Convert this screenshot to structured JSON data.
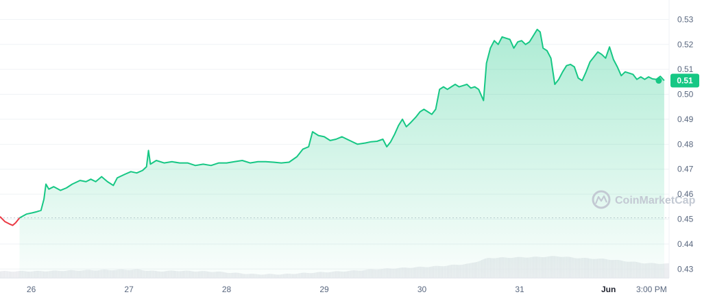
{
  "chart_data": {
    "type": "line",
    "title": "",
    "xlabel": "",
    "ylabel": "",
    "x_ticks": [
      "26",
      "27",
      "28",
      "29",
      "30",
      "31",
      "Jun",
      "3:00 PM"
    ],
    "y_ticks": [
      "0.53",
      "0.52",
      "0.51",
      "0.50",
      "0.49",
      "0.48",
      "0.47",
      "0.46",
      "0.45",
      "0.44",
      "0.43"
    ],
    "ylim": [
      0.4265,
      0.5356
    ],
    "xlim": [
      0,
      6.85
    ],
    "reference_price": 0.4505,
    "current_price_label": "0.51",
    "current_price": 0.5055,
    "grid": true,
    "colors": {
      "up": "#16c784",
      "down": "#ea3943",
      "volume": "#e6e8ec",
      "grid": "#eff2f5",
      "axis_text": "#58667e"
    },
    "watermark": "CoinMarketCap",
    "series": [
      {
        "values": [
          [
            0.0,
            0.451
          ],
          [
            0.05,
            0.449
          ],
          [
            0.1,
            0.448
          ],
          [
            0.13,
            0.4475
          ],
          [
            0.16,
            0.4485
          ],
          [
            0.2,
            0.4505
          ],
          [
            0.27,
            0.452
          ],
          [
            0.33,
            0.4525
          ],
          [
            0.38,
            0.453
          ],
          [
            0.42,
            0.4535
          ],
          [
            0.45,
            0.458
          ],
          [
            0.47,
            0.464
          ],
          [
            0.5,
            0.462
          ],
          [
            0.55,
            0.463
          ],
          [
            0.62,
            0.4615
          ],
          [
            0.68,
            0.4625
          ],
          [
            0.74,
            0.464
          ],
          [
            0.82,
            0.4655
          ],
          [
            0.88,
            0.465
          ],
          [
            0.93,
            0.466
          ],
          [
            0.98,
            0.465
          ],
          [
            1.04,
            0.467
          ],
          [
            1.1,
            0.465
          ],
          [
            1.16,
            0.4635
          ],
          [
            1.2,
            0.4665
          ],
          [
            1.28,
            0.468
          ],
          [
            1.34,
            0.469
          ],
          [
            1.4,
            0.4685
          ],
          [
            1.46,
            0.4695
          ],
          [
            1.5,
            0.471
          ],
          [
            1.52,
            0.4775
          ],
          [
            1.54,
            0.472
          ],
          [
            1.6,
            0.4735
          ],
          [
            1.68,
            0.4725
          ],
          [
            1.76,
            0.473
          ],
          [
            1.84,
            0.4725
          ],
          [
            1.92,
            0.4725
          ],
          [
            2.0,
            0.4715
          ],
          [
            2.08,
            0.472
          ],
          [
            2.16,
            0.4715
          ],
          [
            2.24,
            0.4725
          ],
          [
            2.32,
            0.4725
          ],
          [
            2.4,
            0.473
          ],
          [
            2.48,
            0.4735
          ],
          [
            2.56,
            0.4725
          ],
          [
            2.64,
            0.473
          ],
          [
            2.72,
            0.473
          ],
          [
            2.8,
            0.4728
          ],
          [
            2.88,
            0.4725
          ],
          [
            2.96,
            0.4728
          ],
          [
            3.04,
            0.475
          ],
          [
            3.1,
            0.478
          ],
          [
            3.16,
            0.479
          ],
          [
            3.2,
            0.485
          ],
          [
            3.26,
            0.4835
          ],
          [
            3.32,
            0.483
          ],
          [
            3.38,
            0.4815
          ],
          [
            3.44,
            0.482
          ],
          [
            3.5,
            0.483
          ],
          [
            3.58,
            0.4815
          ],
          [
            3.66,
            0.48
          ],
          [
            3.74,
            0.4805
          ],
          [
            3.8,
            0.481
          ],
          [
            3.86,
            0.4812
          ],
          [
            3.92,
            0.482
          ],
          [
            3.96,
            0.479
          ],
          [
            4.0,
            0.481
          ],
          [
            4.04,
            0.484
          ],
          [
            4.08,
            0.4875
          ],
          [
            4.12,
            0.49
          ],
          [
            4.16,
            0.487
          ],
          [
            4.2,
            0.4885
          ],
          [
            4.26,
            0.491
          ],
          [
            4.3,
            0.493
          ],
          [
            4.34,
            0.494
          ],
          [
            4.38,
            0.493
          ],
          [
            4.42,
            0.492
          ],
          [
            4.46,
            0.494
          ],
          [
            4.5,
            0.502
          ],
          [
            4.54,
            0.503
          ],
          [
            4.58,
            0.502
          ],
          [
            4.62,
            0.503
          ],
          [
            4.66,
            0.504
          ],
          [
            4.7,
            0.503
          ],
          [
            4.74,
            0.5035
          ],
          [
            4.78,
            0.504
          ],
          [
            4.82,
            0.5025
          ],
          [
            4.86,
            0.503
          ],
          [
            4.9,
            0.502
          ],
          [
            4.95,
            0.4975
          ],
          [
            4.98,
            0.5125
          ],
          [
            5.02,
            0.5185
          ],
          [
            5.06,
            0.5215
          ],
          [
            5.1,
            0.52
          ],
          [
            5.14,
            0.523
          ],
          [
            5.18,
            0.5225
          ],
          [
            5.22,
            0.522
          ],
          [
            5.26,
            0.5185
          ],
          [
            5.3,
            0.521
          ],
          [
            5.34,
            0.5215
          ],
          [
            5.38,
            0.52
          ],
          [
            5.42,
            0.521
          ],
          [
            5.46,
            0.5235
          ],
          [
            5.5,
            0.526
          ],
          [
            5.53,
            0.525
          ],
          [
            5.56,
            0.5185
          ],
          [
            5.6,
            0.5175
          ],
          [
            5.64,
            0.5145
          ],
          [
            5.68,
            0.504
          ],
          [
            5.72,
            0.506
          ],
          [
            5.76,
            0.509
          ],
          [
            5.8,
            0.5115
          ],
          [
            5.84,
            0.512
          ],
          [
            5.88,
            0.511
          ],
          [
            5.92,
            0.5065
          ],
          [
            5.96,
            0.5055
          ],
          [
            6.0,
            0.509
          ],
          [
            6.04,
            0.513
          ],
          [
            6.08,
            0.515
          ],
          [
            6.12,
            0.517
          ],
          [
            6.16,
            0.516
          ],
          [
            6.2,
            0.5145
          ],
          [
            6.24,
            0.519
          ],
          [
            6.28,
            0.514
          ],
          [
            6.32,
            0.511
          ],
          [
            6.36,
            0.5075
          ],
          [
            6.4,
            0.509
          ],
          [
            6.44,
            0.5085
          ],
          [
            6.48,
            0.508
          ],
          [
            6.52,
            0.506
          ],
          [
            6.56,
            0.507
          ],
          [
            6.6,
            0.506
          ],
          [
            6.64,
            0.507
          ],
          [
            6.68,
            0.5062
          ],
          [
            6.72,
            0.506
          ],
          [
            6.76,
            0.5072
          ],
          [
            6.8,
            0.5055
          ]
        ]
      },
      {
        "type": "bar",
        "values_relative": [
          [
            0.0,
            0.55
          ],
          [
            0.4,
            0.56
          ],
          [
            0.7,
            0.62
          ],
          [
            1.0,
            0.66
          ],
          [
            1.4,
            0.7
          ],
          [
            1.6,
            0.55
          ],
          [
            1.8,
            0.6
          ],
          [
            2.2,
            0.52
          ],
          [
            2.6,
            0.3
          ],
          [
            2.9,
            0.3
          ],
          [
            3.1,
            0.4
          ],
          [
            3.5,
            0.55
          ],
          [
            4.0,
            0.8
          ],
          [
            4.5,
            1.0
          ],
          [
            4.8,
            1.2
          ],
          [
            5.0,
            1.7
          ],
          [
            5.5,
            1.78
          ],
          [
            5.7,
            1.85
          ],
          [
            5.9,
            1.7
          ],
          [
            6.2,
            1.6
          ],
          [
            6.6,
            1.25
          ],
          [
            6.85,
            1.2
          ]
        ]
      }
    ]
  }
}
